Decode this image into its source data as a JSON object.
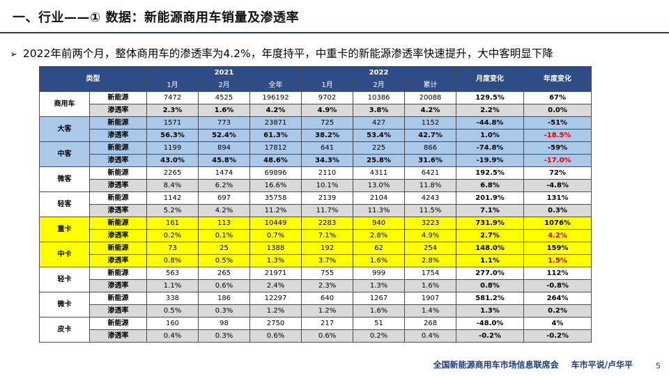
{
  "title": "一、行业——① 数据：新能源商用车销量及渗透率",
  "bullet": {
    "mark": "➢",
    "text": "2022年前两个月，整体商用车的渗透率为4.2%，年度持平，中重卡的新能源渗透率快速提升，大中客明显下降"
  },
  "table": {
    "header": {
      "type_label": "类型",
      "year_2021": "2021",
      "year_2022": "2022",
      "mom_label": "月度变化",
      "yoy_label": "年度变化",
      "cols_2021": [
        "1月",
        "2月",
        "全年"
      ],
      "cols_2022": [
        "1月",
        "2月",
        "累计"
      ]
    },
    "groups": [
      {
        "name": "商用车",
        "style": "grey",
        "rows": [
          {
            "metric": "新能源",
            "v": [
              "7472",
              "4525",
              "196192",
              "9702",
              "10386",
              "20088",
              "129.5%",
              "67%"
            ],
            "bold_values": false
          },
          {
            "metric": "渗透率",
            "v": [
              "2.3%",
              "1.6%",
              "4.2%",
              "4.9%",
              "3.8%",
              "4.2%",
              "2.2%",
              "0.0%"
            ],
            "bold_values": true
          }
        ]
      },
      {
        "name": "大客",
        "style": "blue",
        "rows": [
          {
            "metric": "新能源",
            "v": [
              "1571",
              "773",
              "23871",
              "725",
              "427",
              "1152",
              "-44.8%",
              "-51%"
            ],
            "bold_values": false
          },
          {
            "metric": "渗透率",
            "v": [
              "56.3%",
              "52.4%",
              "61.3%",
              "38.2%",
              "53.4%",
              "42.7%",
              "1.0%",
              "-18.5%"
            ],
            "bold_values": true,
            "red_last": true
          }
        ]
      },
      {
        "name": "中客",
        "style": "blue",
        "rows": [
          {
            "metric": "新能源",
            "v": [
              "1199",
              "894",
              "17812",
              "641",
              "225",
              "866",
              "-74.8%",
              "-59%"
            ],
            "bold_values": false
          },
          {
            "metric": "渗透率",
            "v": [
              "43.0%",
              "45.8%",
              "48.6%",
              "34.3%",
              "25.8%",
              "31.6%",
              "-19.9%",
              "-17.0%"
            ],
            "bold_values": true,
            "red_last": true
          }
        ]
      },
      {
        "name": "微客",
        "style": "grey",
        "rows": [
          {
            "metric": "新能源",
            "v": [
              "2265",
              "1474",
              "69896",
              "2110",
              "4311",
              "6421",
              "192.5%",
              "72%"
            ],
            "bold_values": false
          },
          {
            "metric": "渗透率",
            "v": [
              "8.4%",
              "6.2%",
              "16.6%",
              "10.1%",
              "13.0%",
              "11.8%",
              "6.8%",
              "-4.8%"
            ],
            "bold_values": false
          }
        ]
      },
      {
        "name": "轻客",
        "style": "grey",
        "rows": [
          {
            "metric": "新能源",
            "v": [
              "1142",
              "697",
              "35758",
              "2139",
              "2104",
              "4243",
              "201.9%",
              "131%"
            ],
            "bold_values": false
          },
          {
            "metric": "渗透率",
            "v": [
              "5.2%",
              "4.2%",
              "11.2%",
              "11.7%",
              "11.3%",
              "11.5%",
              "7.1%",
              "0.3%"
            ],
            "bold_values": false
          }
        ]
      },
      {
        "name": "重卡",
        "style": "yellow",
        "rows": [
          {
            "metric": "新能源",
            "v": [
              "161",
              "113",
              "10449",
              "2283",
              "940",
              "3223",
              "731.9%",
              "1076%"
            ],
            "bold_values": false
          },
          {
            "metric": "渗透率",
            "v": [
              "0.2%",
              "0.1%",
              "0.7%",
              "7.1%",
              "2.8%",
              "4.9%",
              "2.7%",
              "4.2%"
            ],
            "bold_values": false,
            "red_last": true
          }
        ]
      },
      {
        "name": "中卡",
        "style": "yellow",
        "rows": [
          {
            "metric": "新能源",
            "v": [
              "73",
              "25",
              "1388",
              "192",
              "62",
              "254",
              "148.0%",
              "159%"
            ],
            "bold_values": false
          },
          {
            "metric": "渗透率",
            "v": [
              "0.8%",
              "0.5%",
              "1.3%",
              "3.7%",
              "1.6%",
              "2.8%",
              "1.1%",
              "1.5%"
            ],
            "bold_values": false,
            "red_last": true
          }
        ]
      },
      {
        "name": "轻卡",
        "style": "grey",
        "rows": [
          {
            "metric": "新能源",
            "v": [
              "563",
              "265",
              "21971",
              "755",
              "999",
              "1754",
              "277.0%",
              "112%"
            ],
            "bold_values": false
          },
          {
            "metric": "渗透率",
            "v": [
              "1.1%",
              "0.6%",
              "2.4%",
              "2.3%",
              "1.3%",
              "1.6%",
              "0.8%",
              "-0.8%"
            ],
            "bold_values": false
          }
        ]
      },
      {
        "name": "微卡",
        "style": "grey",
        "rows": [
          {
            "metric": "新能源",
            "v": [
              "338",
              "186",
              "12297",
              "640",
              "1267",
              "1907",
              "581.2%",
              "264%"
            ],
            "bold_values": false
          },
          {
            "metric": "渗透率",
            "v": [
              "0.5%",
              "0.3%",
              "1.2%",
              "1.2%",
              "1.6%",
              "1.4%",
              "1.3%",
              "0.2%"
            ],
            "bold_values": false
          }
        ]
      },
      {
        "name": "皮卡",
        "style": "grey",
        "rows": [
          {
            "metric": "新能源",
            "v": [
              "160",
              "98",
              "2750",
              "217",
              "51",
              "268",
              "-48.0%",
              "4%"
            ],
            "bold_values": false
          },
          {
            "metric": "渗透率",
            "v": [
              "0.4%",
              "0.3%",
              "0.6%",
              "0.6%",
              "0.2%",
              "0.4%",
              "-0.2%",
              "-0.2%"
            ],
            "bold_values": false
          }
        ]
      }
    ]
  },
  "footer": {
    "org": "全国新能源商用车市场信息联席会",
    "author": "车市平说/卢华平",
    "page": "5"
  },
  "colors": {
    "header_bg": "#2e4d86",
    "highlight_blue": "#a9c8ea",
    "highlight_yellow": "#ffff00",
    "alt_row_grey": "#d9d9d9",
    "negative_red": "#e00000",
    "footer_text": "#1f3a7a"
  }
}
